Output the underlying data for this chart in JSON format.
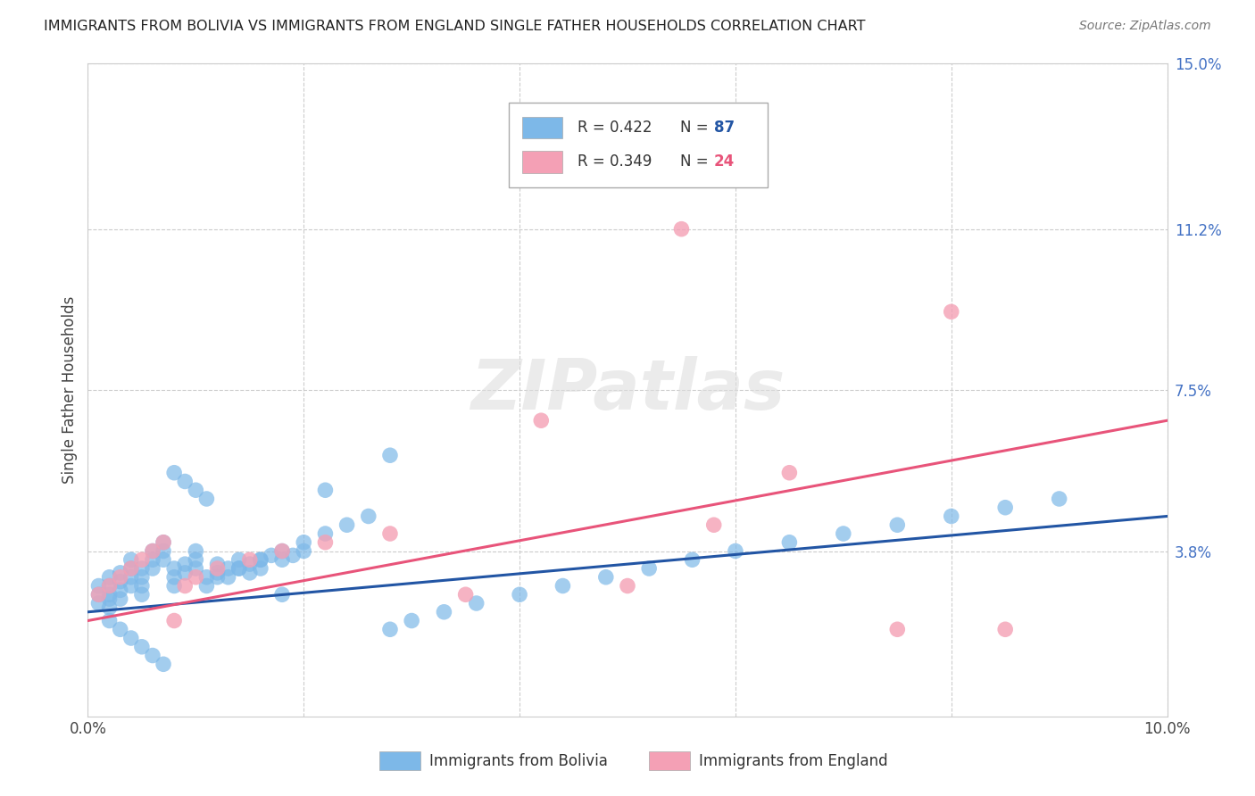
{
  "title": "IMMIGRANTS FROM BOLIVIA VS IMMIGRANTS FROM ENGLAND SINGLE FATHER HOUSEHOLDS CORRELATION CHART",
  "source": "Source: ZipAtlas.com",
  "ylabel": "Single Father Households",
  "xlim": [
    0.0,
    0.1
  ],
  "ylim": [
    0.0,
    0.15
  ],
  "yticks": [
    0.038,
    0.075,
    0.112,
    0.15
  ],
  "ytick_labels": [
    "3.8%",
    "7.5%",
    "11.2%",
    "15.0%"
  ],
  "xticks": [
    0.0,
    0.02,
    0.04,
    0.06,
    0.08,
    0.1
  ],
  "xtick_labels": [
    "0.0%",
    "",
    "",
    "",
    "",
    "10.0%"
  ],
  "bolivia_color": "#7db8e8",
  "england_color": "#f4a0b5",
  "bolivia_R": 0.422,
  "bolivia_N": 87,
  "england_R": 0.349,
  "england_N": 24,
  "bolivia_line_color": "#2255a4",
  "england_line_color": "#e8547a",
  "bolivia_line_start_y": 0.024,
  "bolivia_line_end_y": 0.046,
  "england_line_start_y": 0.022,
  "england_line_end_y": 0.068,
  "bolivia_x": [
    0.001,
    0.001,
    0.001,
    0.002,
    0.002,
    0.002,
    0.002,
    0.002,
    0.003,
    0.003,
    0.003,
    0.003,
    0.004,
    0.004,
    0.004,
    0.004,
    0.005,
    0.005,
    0.005,
    0.005,
    0.006,
    0.006,
    0.006,
    0.007,
    0.007,
    0.007,
    0.008,
    0.008,
    0.008,
    0.009,
    0.009,
    0.01,
    0.01,
    0.01,
    0.011,
    0.011,
    0.012,
    0.012,
    0.013,
    0.013,
    0.014,
    0.014,
    0.015,
    0.015,
    0.016,
    0.016,
    0.017,
    0.018,
    0.019,
    0.02,
    0.002,
    0.003,
    0.004,
    0.005,
    0.006,
    0.007,
    0.008,
    0.009,
    0.01,
    0.011,
    0.012,
    0.014,
    0.016,
    0.018,
    0.02,
    0.022,
    0.024,
    0.026,
    0.028,
    0.03,
    0.033,
    0.036,
    0.04,
    0.044,
    0.048,
    0.052,
    0.056,
    0.06,
    0.065,
    0.07,
    0.075,
    0.08,
    0.085,
    0.09,
    0.018,
    0.022,
    0.028
  ],
  "bolivia_y": [
    0.028,
    0.03,
    0.026,
    0.032,
    0.03,
    0.028,
    0.025,
    0.027,
    0.033,
    0.031,
    0.029,
    0.027,
    0.036,
    0.034,
    0.032,
    0.03,
    0.034,
    0.032,
    0.03,
    0.028,
    0.038,
    0.036,
    0.034,
    0.04,
    0.038,
    0.036,
    0.034,
    0.032,
    0.03,
    0.035,
    0.033,
    0.038,
    0.036,
    0.034,
    0.032,
    0.03,
    0.035,
    0.033,
    0.034,
    0.032,
    0.036,
    0.034,
    0.035,
    0.033,
    0.036,
    0.034,
    0.037,
    0.036,
    0.037,
    0.038,
    0.022,
    0.02,
    0.018,
    0.016,
    0.014,
    0.012,
    0.056,
    0.054,
    0.052,
    0.05,
    0.032,
    0.034,
    0.036,
    0.038,
    0.04,
    0.042,
    0.044,
    0.046,
    0.02,
    0.022,
    0.024,
    0.026,
    0.028,
    0.03,
    0.032,
    0.034,
    0.036,
    0.038,
    0.04,
    0.042,
    0.044,
    0.046,
    0.048,
    0.05,
    0.028,
    0.052,
    0.06
  ],
  "england_x": [
    0.001,
    0.002,
    0.003,
    0.004,
    0.005,
    0.006,
    0.007,
    0.008,
    0.009,
    0.01,
    0.012,
    0.015,
    0.018,
    0.022,
    0.028,
    0.035,
    0.042,
    0.05,
    0.058,
    0.065,
    0.075,
    0.085,
    0.055,
    0.08
  ],
  "england_y": [
    0.028,
    0.03,
    0.032,
    0.034,
    0.036,
    0.038,
    0.04,
    0.022,
    0.03,
    0.032,
    0.034,
    0.036,
    0.038,
    0.04,
    0.042,
    0.028,
    0.068,
    0.03,
    0.044,
    0.056,
    0.02,
    0.02,
    0.112,
    0.093
  ]
}
